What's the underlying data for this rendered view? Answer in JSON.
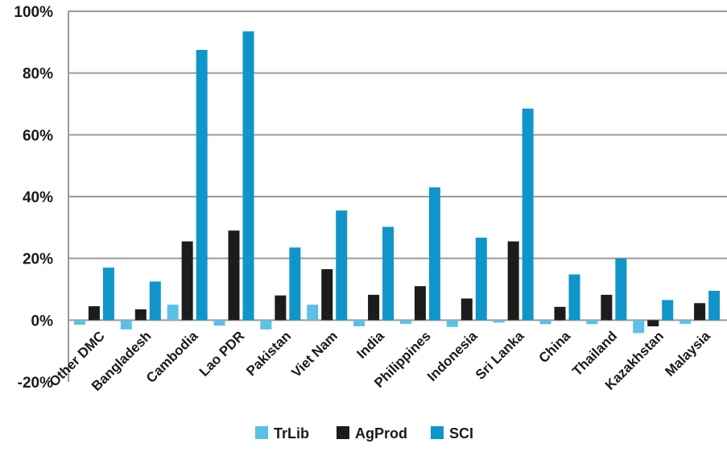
{
  "chart_data": {
    "type": "bar",
    "ylim": [
      -20,
      100
    ],
    "y_ticks": [
      "-20%",
      "0%",
      "20%",
      "40%",
      "60%",
      "80%",
      "100%"
    ],
    "y_tick_values": [
      -20,
      0,
      20,
      40,
      60,
      80,
      100
    ],
    "grid": true,
    "legend_position": "bottom",
    "categories": [
      "Other DMC",
      "Bangladesh",
      "Cambodia",
      "Lao PDR",
      "Pakistan",
      "Viet Nam",
      "India",
      "Philippines",
      "Indonesia",
      "Sri Lanka",
      "China",
      "Thailand",
      "Kazakhstan",
      "Malaysia"
    ],
    "series": [
      {
        "name": "TrLib",
        "color": "#5bc0e6",
        "values": [
          -1.5,
          -3,
          5,
          -1.8,
          -3,
          5,
          -2,
          -1.2,
          -2.2,
          -0.8,
          -1.3,
          -1.3,
          -4.2,
          -1.2
        ]
      },
      {
        "name": "AgProd",
        "color": "#1c1c1c",
        "values": [
          4.5,
          3.5,
          25.5,
          29,
          8,
          16.5,
          8.2,
          11,
          7,
          25.5,
          4.3,
          8.2,
          -2,
          5.5
        ]
      },
      {
        "name": "SCI",
        "color": "#0f95c9",
        "values": [
          17,
          12.5,
          87.5,
          93.5,
          23.5,
          35.5,
          30.2,
          43,
          26.7,
          68.5,
          14.8,
          20,
          6.5,
          9.5
        ]
      }
    ]
  }
}
